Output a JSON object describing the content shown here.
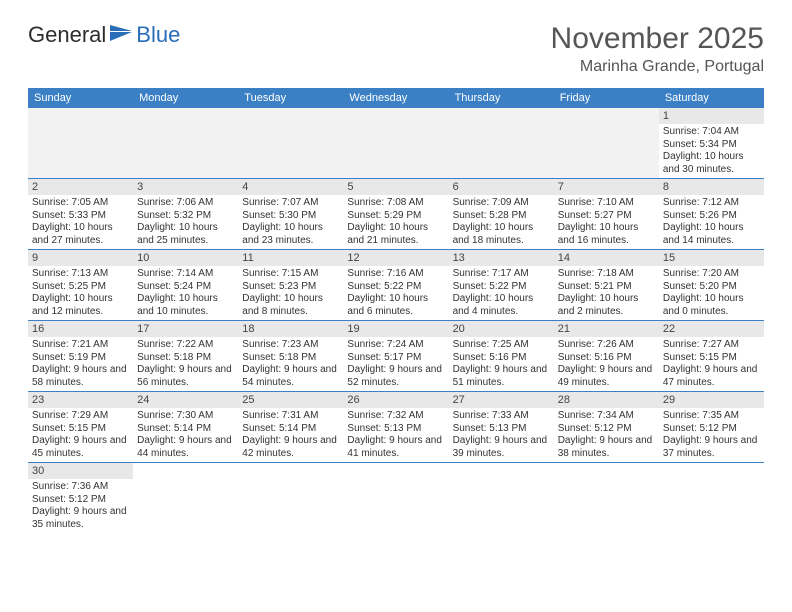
{
  "logo": {
    "text1": "General",
    "text2": "Blue"
  },
  "title": "November 2025",
  "location": "Marinha Grande, Portugal",
  "colors": {
    "header_bg": "#3b7fc4",
    "header_text": "#ffffff",
    "daynum_bg": "#e8e8e8",
    "empty_bg": "#f2f2f2",
    "row_border": "#3b7fc4",
    "text": "#333333",
    "title_color": "#555555"
  },
  "dayHeaders": [
    "Sunday",
    "Monday",
    "Tuesday",
    "Wednesday",
    "Thursday",
    "Friday",
    "Saturday"
  ],
  "weeks": [
    [
      null,
      null,
      null,
      null,
      null,
      null,
      {
        "n": "1",
        "sr": "Sunrise: 7:04 AM",
        "ss": "Sunset: 5:34 PM",
        "dl": "Daylight: 10 hours and 30 minutes."
      }
    ],
    [
      {
        "n": "2",
        "sr": "Sunrise: 7:05 AM",
        "ss": "Sunset: 5:33 PM",
        "dl": "Daylight: 10 hours and 27 minutes."
      },
      {
        "n": "3",
        "sr": "Sunrise: 7:06 AM",
        "ss": "Sunset: 5:32 PM",
        "dl": "Daylight: 10 hours and 25 minutes."
      },
      {
        "n": "4",
        "sr": "Sunrise: 7:07 AM",
        "ss": "Sunset: 5:30 PM",
        "dl": "Daylight: 10 hours and 23 minutes."
      },
      {
        "n": "5",
        "sr": "Sunrise: 7:08 AM",
        "ss": "Sunset: 5:29 PM",
        "dl": "Daylight: 10 hours and 21 minutes."
      },
      {
        "n": "6",
        "sr": "Sunrise: 7:09 AM",
        "ss": "Sunset: 5:28 PM",
        "dl": "Daylight: 10 hours and 18 minutes."
      },
      {
        "n": "7",
        "sr": "Sunrise: 7:10 AM",
        "ss": "Sunset: 5:27 PM",
        "dl": "Daylight: 10 hours and 16 minutes."
      },
      {
        "n": "8",
        "sr": "Sunrise: 7:12 AM",
        "ss": "Sunset: 5:26 PM",
        "dl": "Daylight: 10 hours and 14 minutes."
      }
    ],
    [
      {
        "n": "9",
        "sr": "Sunrise: 7:13 AM",
        "ss": "Sunset: 5:25 PM",
        "dl": "Daylight: 10 hours and 12 minutes."
      },
      {
        "n": "10",
        "sr": "Sunrise: 7:14 AM",
        "ss": "Sunset: 5:24 PM",
        "dl": "Daylight: 10 hours and 10 minutes."
      },
      {
        "n": "11",
        "sr": "Sunrise: 7:15 AM",
        "ss": "Sunset: 5:23 PM",
        "dl": "Daylight: 10 hours and 8 minutes."
      },
      {
        "n": "12",
        "sr": "Sunrise: 7:16 AM",
        "ss": "Sunset: 5:22 PM",
        "dl": "Daylight: 10 hours and 6 minutes."
      },
      {
        "n": "13",
        "sr": "Sunrise: 7:17 AM",
        "ss": "Sunset: 5:22 PM",
        "dl": "Daylight: 10 hours and 4 minutes."
      },
      {
        "n": "14",
        "sr": "Sunrise: 7:18 AM",
        "ss": "Sunset: 5:21 PM",
        "dl": "Daylight: 10 hours and 2 minutes."
      },
      {
        "n": "15",
        "sr": "Sunrise: 7:20 AM",
        "ss": "Sunset: 5:20 PM",
        "dl": "Daylight: 10 hours and 0 minutes."
      }
    ],
    [
      {
        "n": "16",
        "sr": "Sunrise: 7:21 AM",
        "ss": "Sunset: 5:19 PM",
        "dl": "Daylight: 9 hours and 58 minutes."
      },
      {
        "n": "17",
        "sr": "Sunrise: 7:22 AM",
        "ss": "Sunset: 5:18 PM",
        "dl": "Daylight: 9 hours and 56 minutes."
      },
      {
        "n": "18",
        "sr": "Sunrise: 7:23 AM",
        "ss": "Sunset: 5:18 PM",
        "dl": "Daylight: 9 hours and 54 minutes."
      },
      {
        "n": "19",
        "sr": "Sunrise: 7:24 AM",
        "ss": "Sunset: 5:17 PM",
        "dl": "Daylight: 9 hours and 52 minutes."
      },
      {
        "n": "20",
        "sr": "Sunrise: 7:25 AM",
        "ss": "Sunset: 5:16 PM",
        "dl": "Daylight: 9 hours and 51 minutes."
      },
      {
        "n": "21",
        "sr": "Sunrise: 7:26 AM",
        "ss": "Sunset: 5:16 PM",
        "dl": "Daylight: 9 hours and 49 minutes."
      },
      {
        "n": "22",
        "sr": "Sunrise: 7:27 AM",
        "ss": "Sunset: 5:15 PM",
        "dl": "Daylight: 9 hours and 47 minutes."
      }
    ],
    [
      {
        "n": "23",
        "sr": "Sunrise: 7:29 AM",
        "ss": "Sunset: 5:15 PM",
        "dl": "Daylight: 9 hours and 45 minutes."
      },
      {
        "n": "24",
        "sr": "Sunrise: 7:30 AM",
        "ss": "Sunset: 5:14 PM",
        "dl": "Daylight: 9 hours and 44 minutes."
      },
      {
        "n": "25",
        "sr": "Sunrise: 7:31 AM",
        "ss": "Sunset: 5:14 PM",
        "dl": "Daylight: 9 hours and 42 minutes."
      },
      {
        "n": "26",
        "sr": "Sunrise: 7:32 AM",
        "ss": "Sunset: 5:13 PM",
        "dl": "Daylight: 9 hours and 41 minutes."
      },
      {
        "n": "27",
        "sr": "Sunrise: 7:33 AM",
        "ss": "Sunset: 5:13 PM",
        "dl": "Daylight: 9 hours and 39 minutes."
      },
      {
        "n": "28",
        "sr": "Sunrise: 7:34 AM",
        "ss": "Sunset: 5:12 PM",
        "dl": "Daylight: 9 hours and 38 minutes."
      },
      {
        "n": "29",
        "sr": "Sunrise: 7:35 AM",
        "ss": "Sunset: 5:12 PM",
        "dl": "Daylight: 9 hours and 37 minutes."
      }
    ],
    [
      {
        "n": "30",
        "sr": "Sunrise: 7:36 AM",
        "ss": "Sunset: 5:12 PM",
        "dl": "Daylight: 9 hours and 35 minutes."
      },
      null,
      null,
      null,
      null,
      null,
      null
    ]
  ]
}
